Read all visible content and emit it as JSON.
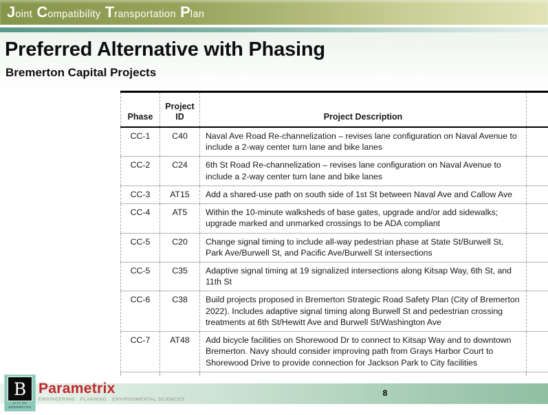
{
  "banner": {
    "plan_title": "Joint Compatibility Transportation Plan"
  },
  "title": "Preferred Alternative with Phasing",
  "subtitle": "Bremerton Capital Projects",
  "table": {
    "columns": [
      "Phase",
      "Project ID",
      "Project Description"
    ],
    "rows": [
      {
        "phase": "CC-1",
        "project_id": "C40",
        "description": "Naval Ave Road Re-channelization – revises lane configuration on Naval Avenue to include a 2-way center turn lane and bike lanes"
      },
      {
        "phase": "CC-2",
        "project_id": "C24",
        "description": "6th St Road Re-channelization – revises lane configuration on Naval Avenue to include a 2-way center turn lane and bike lanes"
      },
      {
        "phase": "CC-3",
        "project_id": "AT15",
        "description": "Add a shared-use path on south side of 1st St between Naval Ave and Callow Ave"
      },
      {
        "phase": "CC-4",
        "project_id": "AT5",
        "description": "Within the 10-minute walksheds of base gates, upgrade and/or add sidewalks; upgrade marked and unmarked crossings to be ADA compliant"
      },
      {
        "phase": "CC-5",
        "project_id": "C20",
        "description": "Change signal timing to include all-way pedestrian phase at State St/Burwell St, Park Ave/Burwell St, and Pacific Ave/Burwell St intersections"
      },
      {
        "phase": "CC-5",
        "project_id": "C35",
        "description": "Adaptive signal timing at 19 signalized intersections along Kitsap Way, 6th St, and 11th St"
      },
      {
        "phase": "CC-6",
        "project_id": "C38",
        "description": "Build projects proposed in Bremerton Strategic Road Safety Plan (City of Bremerton 2022). Includes adaptive signal timing along Burwell St and pedestrian crossing treatments at 6th St/Hewitt Ave and Burwell St/Washington Ave"
      },
      {
        "phase": "CC-7",
        "project_id": "AT48",
        "description": "Add bicycle facilities on Shorewood Dr to connect to Kitsap Way and to downtown Bremerton. Navy should consider improving path from Grays Harbor Court to Shorewood Drive to provide connection for Jackson Park to City facilities"
      }
    ]
  },
  "footer": {
    "page_number": "8",
    "logo_letter": "B",
    "logo_caption_line1": "CITY OF",
    "logo_caption_line2": "BREMERTON",
    "company_name": "Parametrix",
    "company_tagline": "ENGINEERING . PLANNING . ENVIRONMENTAL SCIENCES"
  },
  "colors": {
    "banner_olive_left": "#87954b",
    "banner_olive_right": "#e1e3b6",
    "teal_stripe_left": "#57988a",
    "footer_green_right": "#8fbfa2",
    "logo_teal": "#8cc8ba",
    "company_red": "#c1272d"
  }
}
